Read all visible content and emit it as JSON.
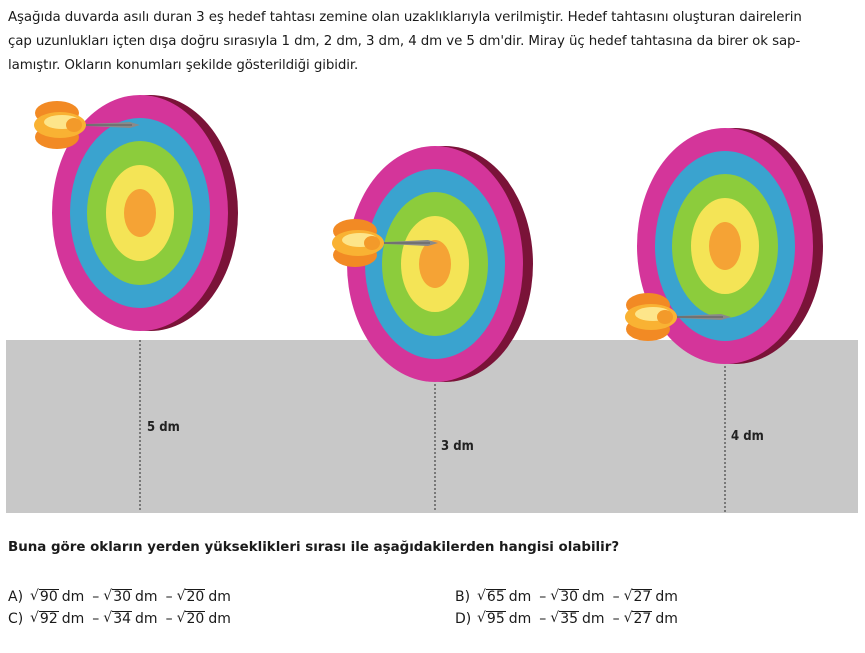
{
  "problem": {
    "intro_lines": [
      "Aşağıda duvarda asılı duran 3 eş hedef tahtası zemine olan uzaklıklarıyla verilmiştir. Hedef tahtasını oluşturan dairelerin",
      "çap uzunlukları içten dışa doğru sırasıyla 1 dm, 2 dm, 3 dm, 4 dm ve 5 dm'dir. Miray üç hedef tahtasına da birer ok sap-",
      "lamıştır. Okların konumları şekilde gösterildiği gibidir."
    ],
    "question": "Buna göre okların yerden yükseklikleri sırası ile aşağıdakilerden hangisi olabilir?"
  },
  "figure": {
    "distances": [
      "5 dm",
      "3 dm",
      "4 dm"
    ],
    "colors": {
      "floor": "#c8c8c8",
      "ring_magenta": "#d4359a",
      "ring_blue": "#3aa3cf",
      "ring_green": "#8ccc3c",
      "ring_yellow": "#f4e456",
      "ring_orange": "#f5a335",
      "board_edge": "#7a1338",
      "dart_tip": "#888888"
    }
  },
  "options": [
    {
      "letter": "A)",
      "radicands": [
        "90",
        "30",
        "20"
      ],
      "unit": "dm",
      "separator": "–"
    },
    {
      "letter": "B)",
      "radicands": [
        "65",
        "30",
        "27"
      ],
      "unit": "dm",
      "separator": "–"
    },
    {
      "letter": "C)",
      "radicands": [
        "92",
        "34",
        "20"
      ],
      "unit": "dm",
      "separator": "–"
    },
    {
      "letter": "D)",
      "radicands": [
        "95",
        "35",
        "27"
      ],
      "unit": "dm",
      "separator": "–"
    }
  ]
}
